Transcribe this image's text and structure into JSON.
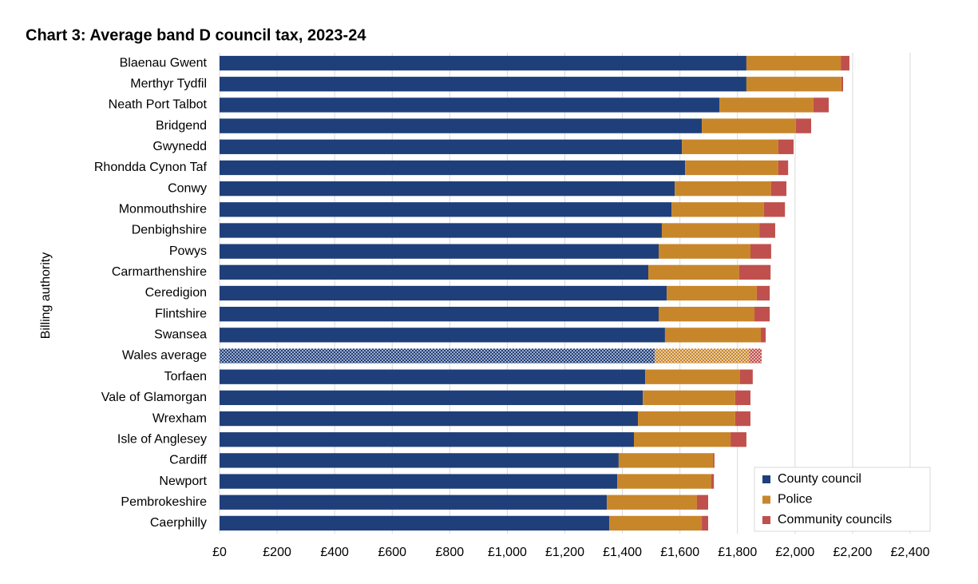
{
  "chart_data": {
    "type": "stacked-barh",
    "title": "Chart 3:  Average band D council tax, 2023-24",
    "y_label": "Billing authority",
    "categories": [
      "Blaenau Gwent",
      "Merthyr Tydfil",
      "Neath Port Talbot",
      "Bridgend",
      "Gwynedd",
      "Rhondda Cynon Taf",
      "Conwy",
      "Monmouthshire",
      "Denbighshire",
      "Powys",
      "Carmarthenshire",
      "Ceredigion",
      "Flintshire",
      "Swansea",
      "Wales average",
      "Torfaen",
      "Vale of Glamorgan",
      "Wrexham",
      "Isle of Anglesey",
      "Cardiff",
      "Newport",
      "Pembrokeshire",
      "Caerphilly"
    ],
    "series": [
      {
        "name": "County council",
        "color": "#1f3f7a",
        "values": [
          1831,
          1831,
          1737,
          1676,
          1607,
          1618,
          1582,
          1571,
          1537,
          1526,
          1490,
          1554,
          1526,
          1548,
          1512,
          1479,
          1471,
          1454,
          1440,
          1387,
          1382,
          1346,
          1354
        ]
      },
      {
        "name": "Police",
        "color": "#c8862b",
        "values": [
          328,
          330,
          327,
          327,
          335,
          324,
          335,
          321,
          339,
          319,
          316,
          313,
          333,
          333,
          328,
          330,
          321,
          338,
          336,
          328,
          327,
          313,
          322
        ]
      },
      {
        "name": "Community councils",
        "color": "#c0504d",
        "values": [
          30,
          6,
          53,
          53,
          53,
          34,
          53,
          73,
          55,
          72,
          109,
          45,
          53,
          17,
          44,
          44,
          53,
          53,
          55,
          5,
          9,
          39,
          22
        ]
      }
    ],
    "patterned_categories": [
      14
    ],
    "xlim": [
      0,
      2400
    ],
    "xticks": [
      {
        "value": 0,
        "label": "£0"
      },
      {
        "value": 200,
        "label": "£200"
      },
      {
        "value": 400,
        "label": "£400"
      },
      {
        "value": 600,
        "label": "£600"
      },
      {
        "value": 800,
        "label": "£800"
      },
      {
        "value": 1000,
        "label": "£1,000"
      },
      {
        "value": 1200,
        "label": "£1,200"
      },
      {
        "value": 1400,
        "label": "£1,400"
      },
      {
        "value": 1600,
        "label": "£1,600"
      },
      {
        "value": 1800,
        "label": "£1,800"
      },
      {
        "value": 2000,
        "label": "£2,000"
      },
      {
        "value": 2200,
        "label": "£2,200"
      },
      {
        "value": 2400,
        "label": "£2,400"
      }
    ],
    "grid": true,
    "legend": "lower-right"
  }
}
